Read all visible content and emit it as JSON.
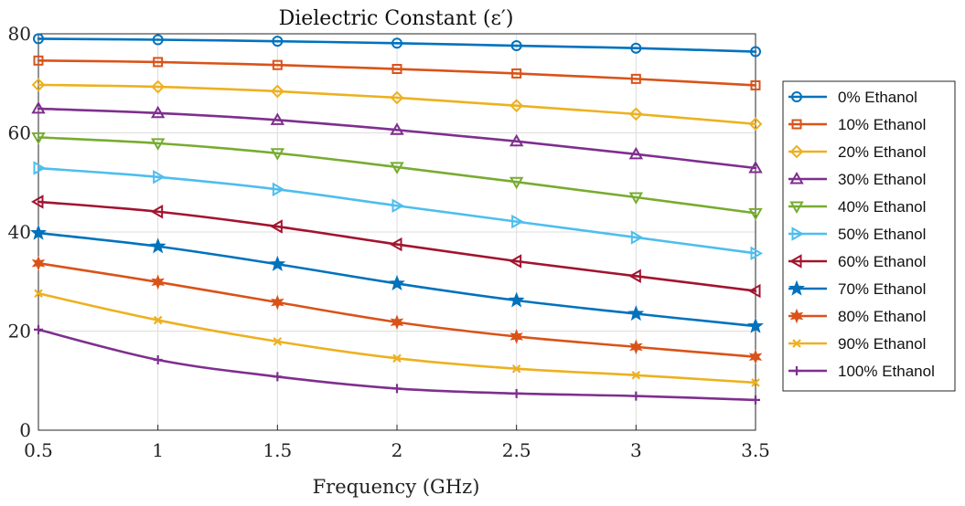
{
  "chart_data": {
    "type": "line",
    "title": "Dielectric Constant (ε′)",
    "xlabel": "Frequency (GHz)",
    "ylabel": "",
    "x": [
      0.5,
      1,
      1.5,
      2,
      2.5,
      3,
      3.5
    ],
    "x_tick_labels": [
      "0.5",
      "1",
      "1.5",
      "2",
      "2.5",
      "3",
      "3.5"
    ],
    "xlim": [
      0.5,
      3.5
    ],
    "ylim": [
      0,
      80
    ],
    "y_ticks": [
      0,
      20,
      40,
      60,
      80
    ],
    "y_tick_labels": [
      "0",
      "20",
      "40",
      "60",
      "80"
    ],
    "grid": true,
    "legend_position": "outside-right",
    "series": [
      {
        "name": "0% Ethanol",
        "marker": "circle",
        "color": "#0072BD",
        "values": [
          79.0,
          78.8,
          78.5,
          78.1,
          77.6,
          77.1,
          76.4
        ]
      },
      {
        "name": "10% Ethanol",
        "marker": "square",
        "color": "#D95319",
        "values": [
          74.6,
          74.3,
          73.7,
          72.9,
          72.0,
          70.9,
          69.6
        ]
      },
      {
        "name": "20% Ethanol",
        "marker": "diamond",
        "color": "#EDB120",
        "values": [
          69.7,
          69.3,
          68.4,
          67.1,
          65.5,
          63.8,
          61.8
        ]
      },
      {
        "name": "30% Ethanol",
        "marker": "triangle-up",
        "color": "#7E2F8E",
        "values": [
          64.9,
          64.0,
          62.6,
          60.6,
          58.3,
          55.7,
          52.9
        ]
      },
      {
        "name": "40% Ethanol",
        "marker": "triangle-down",
        "color": "#77AC30",
        "values": [
          59.1,
          57.9,
          55.9,
          53.1,
          50.1,
          47.0,
          43.8
        ]
      },
      {
        "name": "50% Ethanol",
        "marker": "triangle-right",
        "color": "#4DBEEE",
        "values": [
          52.9,
          51.1,
          48.6,
          45.3,
          42.1,
          38.9,
          35.7
        ]
      },
      {
        "name": "60% Ethanol",
        "marker": "triangle-left",
        "color": "#A2142F",
        "values": [
          46.1,
          44.1,
          41.1,
          37.5,
          34.1,
          31.1,
          28.1
        ]
      },
      {
        "name": "70% Ethanol",
        "marker": "star5",
        "color": "#0072BD",
        "values": [
          39.8,
          37.1,
          33.5,
          29.6,
          26.2,
          23.5,
          21.0
        ]
      },
      {
        "name": "80% Ethanol",
        "marker": "star6",
        "color": "#D95319",
        "values": [
          33.7,
          29.9,
          25.8,
          21.8,
          18.9,
          16.8,
          14.8
        ]
      },
      {
        "name": "90% Ethanol",
        "marker": "x",
        "color": "#EDB120",
        "values": [
          27.6,
          22.2,
          17.9,
          14.5,
          12.4,
          11.1,
          9.6
        ]
      },
      {
        "name": "100% Ethanol",
        "marker": "plus",
        "color": "#7E2F8E",
        "values": [
          20.3,
          14.2,
          10.8,
          8.4,
          7.4,
          6.9,
          6.1
        ]
      }
    ]
  }
}
